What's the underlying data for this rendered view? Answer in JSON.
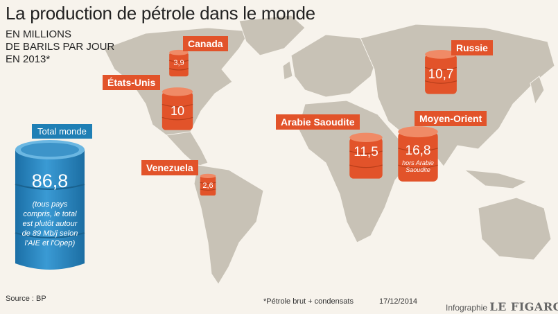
{
  "title": "La production de pétrole dans le monde",
  "subtitle_lines": [
    "EN MILLIONS",
    "DE BARILS PAR JOUR",
    "EN 2013*"
  ],
  "colors": {
    "accent": "#e2532a",
    "barrel_blue": "#2a86c2",
    "map_land": "#c8c2b6",
    "background": "#f7f3ec"
  },
  "chart_data": {
    "type": "table",
    "title": "La production de pétrole dans le monde",
    "unit": "millions de barils par jour en 2013",
    "total": {
      "label": "Total monde",
      "value": "86,8",
      "note": "(tous pays compris, le total est plutôt autour de 89 Mb/j selon l'AIE et l'Opep)"
    },
    "categories": [
      "Canada",
      "États-Unis",
      "Venezuela",
      "Arabie Saoudite",
      "Moyen-Orient",
      "Russie"
    ],
    "values": [
      3.9,
      10,
      2.6,
      11.5,
      16.8,
      10.7
    ],
    "value_labels": [
      "3,9",
      "10",
      "2,6",
      "11,5",
      "16,8",
      "10,7"
    ],
    "notes": {
      "Moyen-Orient": "hors Arabie Saoudite"
    }
  },
  "footer": {
    "source": "Source : BP",
    "footnote": "*Pétrole brut + condensats",
    "date": "17/12/2014",
    "credit": "Infographie",
    "brand": "LE FIGARO"
  }
}
